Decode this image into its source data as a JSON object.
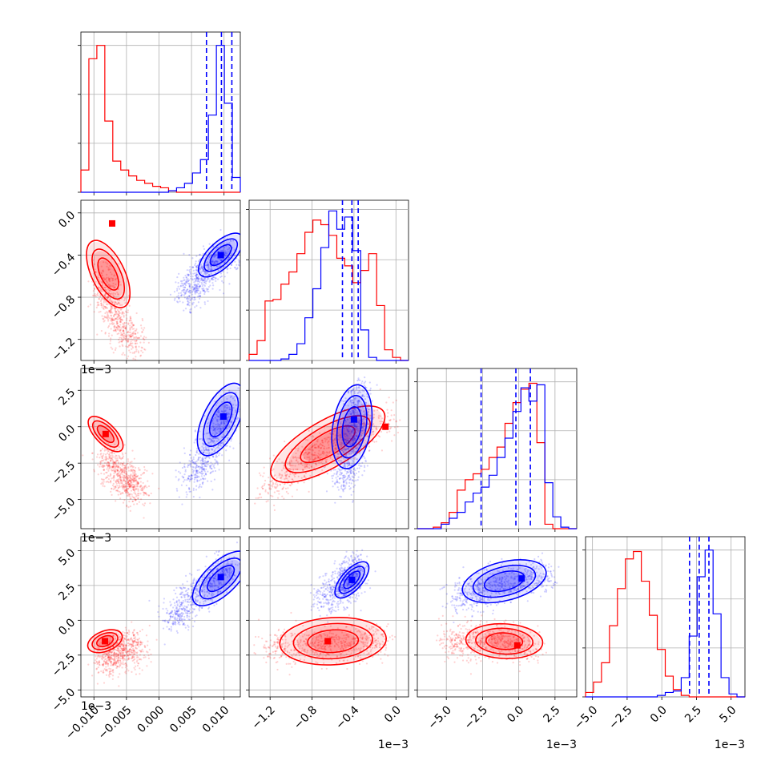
{
  "chart_data": {
    "type": "corner",
    "colors": {
      "series_a": "#ff0000",
      "series_b": "#0000ff",
      "grid": "#b0b0b0"
    },
    "grid": true,
    "parameters": [
      {
        "id": "p1",
        "range": [
          -0.012,
          0.0125
        ],
        "ticks": [
          -0.01,
          -0.005,
          0.0,
          0.005,
          0.01
        ],
        "tick_labels": [
          "−0.010",
          "−0.005",
          "0.000",
          "0.005",
          "0.010"
        ],
        "offset_label": ""
      },
      {
        "id": "p2",
        "range": [
          -0.0014,
          0.00012
        ],
        "ticks": [
          -0.0012,
          -0.0008,
          -0.0004,
          0.0
        ],
        "tick_labels": [
          "−1.2",
          "−0.8",
          "−0.4",
          "0.0"
        ],
        "offset_label": "1e−3"
      },
      {
        "id": "p3",
        "range": [
          -0.007,
          0.004
        ],
        "ticks": [
          -0.005,
          -0.0025,
          0.0,
          0.0025
        ],
        "tick_labels": [
          "−5.0",
          "−2.5",
          "0.0",
          "2.5"
        ],
        "offset_label": "1e−3"
      },
      {
        "id": "p4",
        "range": [
          -0.0055,
          0.006
        ],
        "ticks": [
          -0.005,
          -0.0025,
          0.0,
          0.0025,
          0.005
        ],
        "tick_labels": [
          "−5.0",
          "−2.5",
          "0.0",
          "2.5",
          "5.0"
        ],
        "offset_label": "1e−3"
      }
    ],
    "histograms": [
      {
        "param": "p1",
        "bins": [
          -0.012,
          0.0125
        ],
        "n_bins": 20,
        "ymax": 1.08,
        "series_a": [
          0.15,
          0.9,
          0.99,
          0.48,
          0.21,
          0.15,
          0.11,
          0.08,
          0.06,
          0.04,
          0.03,
          0.01,
          0,
          0,
          0,
          0,
          0,
          0,
          0,
          0
        ],
        "series_b": [
          0,
          0,
          0,
          0,
          0,
          0,
          0,
          0,
          0,
          0,
          0,
          0.01,
          0.03,
          0.06,
          0.13,
          0.22,
          0.52,
          0.99,
          0.6,
          0.1
        ],
        "quantiles_b": [
          0.0073,
          0.0096,
          0.0112
        ]
      },
      {
        "param": "p2",
        "bins": [
          -0.0014,
          0.00012
        ],
        "n_bins": 20,
        "ymax": 1.05,
        "series_a": [
          0.04,
          0.13,
          0.39,
          0.4,
          0.5,
          0.58,
          0.7,
          0.84,
          0.92,
          0.89,
          0.82,
          0.67,
          0.62,
          0.51,
          0.59,
          0.7,
          0.36,
          0.07,
          0.02,
          0
        ],
        "series_b": [
          0,
          0,
          0,
          0,
          0.01,
          0.04,
          0.11,
          0.28,
          0.47,
          0.74,
          0.98,
          0.86,
          0.94,
          0.72,
          0.2,
          0.02,
          0,
          0,
          0,
          0
        ],
        "quantiles_b": [
          -0.00051,
          -0.00042,
          -0.00036
        ]
      },
      {
        "param": "p3",
        "bins": [
          -0.007,
          0.004
        ],
        "n_bins": 20,
        "ymax": 1.08,
        "series_a": [
          0,
          0,
          0.01,
          0.04,
          0.11,
          0.26,
          0.33,
          0.37,
          0.4,
          0.48,
          0.55,
          0.71,
          0.85,
          0.94,
          0.98,
          0.58,
          0.03,
          0,
          0,
          0
        ],
        "series_b": [
          0,
          0,
          0,
          0.03,
          0.07,
          0.11,
          0.18,
          0.24,
          0.28,
          0.36,
          0.48,
          0.61,
          0.79,
          0.95,
          0.86,
          0.97,
          0.31,
          0.08,
          0.01,
          0
        ],
        "quantiles_b": [
          -0.0026,
          -0.0002,
          0.0008
        ]
      },
      {
        "param": "p4",
        "bins": [
          -0.0055,
          0.006
        ],
        "n_bins": 20,
        "ymax": 1.08,
        "series_a": [
          0.03,
          0.1,
          0.23,
          0.48,
          0.73,
          0.93,
          0.98,
          0.78,
          0.55,
          0.32,
          0.14,
          0.05,
          0.01,
          0,
          0,
          0,
          0,
          0,
          0,
          0
        ],
        "series_b": [
          0,
          0,
          0,
          0,
          0,
          0,
          0,
          0,
          0,
          0.01,
          0.03,
          0.04,
          0.13,
          0.41,
          0.81,
          0.99,
          0.56,
          0.13,
          0.02,
          0
        ],
        "quantiles_b": [
          0.002,
          0.0027,
          0.0034
        ]
      }
    ],
    "pairs": [
      {
        "x": "p1",
        "y": "p2",
        "series_a": {
          "center": [
            -0.0078,
            -0.00058
          ],
          "peak": [
            -0.0072,
            -0.0001
          ],
          "cloud": [
            [
              -0.009,
              -0.00058
            ],
            [
              -0.007,
              -0.00095
            ],
            [
              -0.0035,
              -0.00128
            ]
          ]
        },
        "series_b": {
          "center": [
            0.0095,
            -0.0004
          ],
          "peak": [
            0.0095,
            -0.0004
          ],
          "cloud": [
            [
              0.004,
              -0.0008
            ],
            [
              0.007,
              -0.00055
            ],
            [
              0.011,
              -0.00038
            ]
          ]
        }
      },
      {
        "x": "p1",
        "y": "p3",
        "series_a": {
          "center": [
            -0.0082,
            -0.0005
          ],
          "peak": [
            -0.0082,
            -0.0005
          ],
          "cloud": [
            [
              -0.0085,
              -0.002
            ],
            [
              -0.0055,
              -0.0035
            ],
            [
              -0.003,
              -0.0045
            ]
          ]
        },
        "series_b": {
          "center": [
            0.0095,
            0.0005
          ],
          "peak": [
            0.0099,
            0.0007
          ],
          "cloud": [
            [
              0.005,
              -0.004
            ],
            [
              0.008,
              -0.0015
            ],
            [
              0.011,
              0.0015
            ]
          ]
        }
      },
      {
        "x": "p1",
        "y": "p4",
        "series_a": {
          "center": [
            -0.0083,
            -0.0015
          ],
          "peak": [
            -0.0083,
            -0.0015
          ],
          "cloud": [
            [
              -0.0085,
              -0.003
            ],
            [
              -0.006,
              -0.002
            ],
            [
              -0.003,
              -0.002
            ]
          ]
        },
        "series_b": {
          "center": [
            0.0095,
            0.003
          ],
          "peak": [
            0.0095,
            0.0031
          ],
          "cloud": [
            [
              0.002,
              0.0
            ],
            [
              0.006,
              0.002
            ],
            [
              0.011,
              0.004
            ]
          ]
        }
      },
      {
        "x": "p2",
        "y": "p3",
        "series_a": {
          "center": [
            -0.00065,
            -0.0012
          ],
          "peak": [
            -0.0001,
            0.0
          ],
          "cloud": [
            [
              -0.00125,
              -0.0045
            ],
            [
              -0.0007,
              -0.0015
            ],
            [
              -5e-05,
              0.0005
            ]
          ]
        },
        "series_b": {
          "center": [
            -0.00042,
            0.0
          ],
          "peak": [
            -0.0004,
            0.0005
          ],
          "cloud": [
            [
              -0.0005,
              -0.004
            ],
            [
              -0.0004,
              -0.001
            ],
            [
              -0.00035,
              0.0025
            ]
          ]
        }
      },
      {
        "x": "p2",
        "y": "p4",
        "series_a": {
          "center": [
            -0.0006,
            -0.0015
          ],
          "peak": [
            -0.00065,
            -0.0015
          ],
          "cloud": [
            [
              -0.00125,
              -0.002
            ],
            [
              -0.0006,
              -0.0018
            ],
            [
              -0.0001,
              -0.0015
            ]
          ]
        },
        "series_b": {
          "center": [
            -0.00042,
            0.0029
          ],
          "peak": [
            -0.00042,
            0.0029
          ],
          "cloud": [
            [
              -0.0007,
              0.0015
            ],
            [
              -0.00045,
              0.0025
            ],
            [
              -0.0004,
              0.004
            ]
          ]
        }
      },
      {
        "x": "p3",
        "y": "p4",
        "series_a": {
          "center": [
            -0.001,
            -0.0015
          ],
          "peak": [
            -0.0001,
            -0.0018
          ],
          "cloud": [
            [
              -0.005,
              -0.0015
            ],
            [
              -0.002,
              -0.0015
            ],
            [
              0.001,
              -0.0018
            ]
          ]
        },
        "series_b": {
          "center": [
            -0.001,
            0.0028
          ],
          "peak": [
            0.0002,
            0.003
          ],
          "cloud": [
            [
              -0.0045,
              0.0015
            ],
            [
              -0.0015,
              0.0025
            ],
            [
              0.002,
              0.0032
            ]
          ]
        }
      }
    ]
  }
}
